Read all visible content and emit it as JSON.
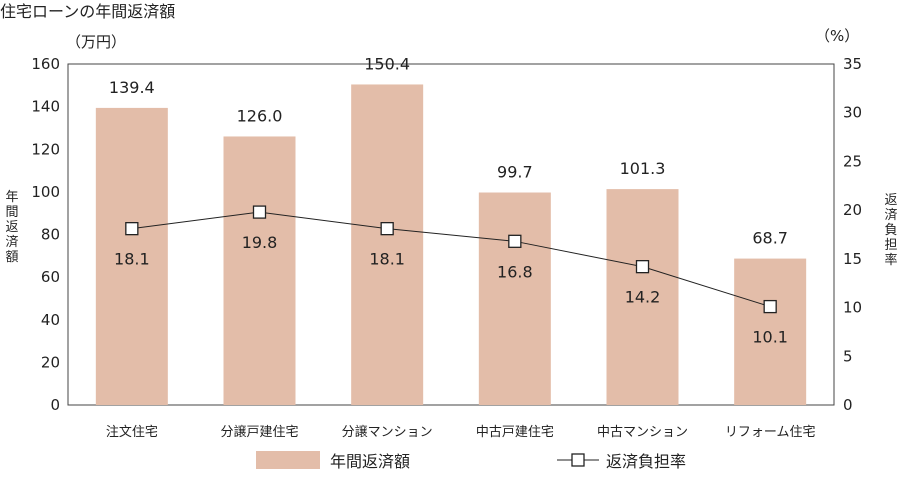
{
  "chart_data": {
    "type": "bar+line",
    "title": "住宅ローンの年間返済額",
    "left_unit": "（万円）",
    "right_unit": "（%）",
    "left_axis_label": "年間返済額",
    "right_axis_label": "返済負担率",
    "categories": [
      "注文住宅",
      "分譲戸建住宅",
      "分譲マンション",
      "中古戸建住宅",
      "中古マンション",
      "リフォーム住宅"
    ],
    "series": [
      {
        "name": "年間返済額",
        "kind": "bar",
        "axis": "left",
        "values": [
          139.4,
          126.0,
          150.4,
          99.7,
          101.3,
          68.7
        ],
        "labels": [
          "139.4",
          "126.0",
          "150.4",
          "99.7",
          "101.3",
          "68.7"
        ],
        "color": "#e3bda9"
      },
      {
        "name": "返済負担率",
        "kind": "line",
        "axis": "right",
        "values": [
          18.1,
          19.8,
          18.1,
          16.8,
          14.2,
          10.1
        ],
        "labels": [
          "18.1",
          "19.8",
          "18.1",
          "16.8",
          "14.2",
          "10.1"
        ],
        "color": "#222222"
      }
    ],
    "left_ylim": [
      0,
      160
    ],
    "left_ticks": [
      "0",
      "20",
      "40",
      "60",
      "80",
      "100",
      "120",
      "140",
      "160"
    ],
    "right_ylim": [
      0,
      35
    ],
    "right_ticks": [
      "0",
      "5",
      "10",
      "15",
      "20",
      "25",
      "30",
      "35"
    ],
    "grid": false,
    "legend_position": "bottom"
  }
}
